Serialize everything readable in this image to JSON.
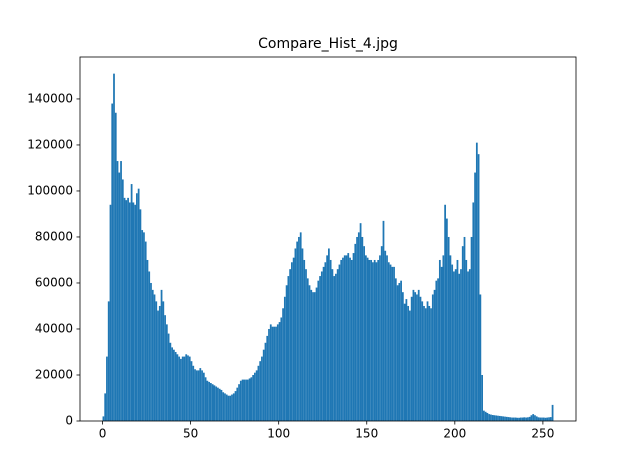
{
  "chart_data": {
    "type": "histogram",
    "title": "Compare_Hist_4.jpg",
    "color": "#1f77b4",
    "bins": [
      0,
      1,
      2,
      3,
      4,
      5,
      6,
      7,
      8,
      9,
      10,
      11,
      12,
      13,
      14,
      15,
      16,
      17,
      18,
      19,
      20,
      21,
      22,
      23,
      24,
      25,
      26,
      27,
      28,
      29,
      30,
      31,
      32,
      33,
      34,
      35,
      36,
      37,
      38,
      39,
      40,
      41,
      42,
      43,
      44,
      45,
      46,
      47,
      48,
      49,
      50,
      51,
      52,
      53,
      54,
      55,
      56,
      57,
      58,
      59,
      60,
      61,
      62,
      63,
      64,
      65,
      66,
      67,
      68,
      69,
      70,
      71,
      72,
      73,
      74,
      75,
      76,
      77,
      78,
      79,
      80,
      81,
      82,
      83,
      84,
      85,
      86,
      87,
      88,
      89,
      90,
      91,
      92,
      93,
      94,
      95,
      96,
      97,
      98,
      99,
      100,
      101,
      102,
      103,
      104,
      105,
      106,
      107,
      108,
      109,
      110,
      111,
      112,
      113,
      114,
      115,
      116,
      117,
      118,
      119,
      120,
      121,
      122,
      123,
      124,
      125,
      126,
      127,
      128,
      129,
      130,
      131,
      132,
      133,
      134,
      135,
      136,
      137,
      138,
      139,
      140,
      141,
      142,
      143,
      144,
      145,
      146,
      147,
      148,
      149,
      150,
      151,
      152,
      153,
      154,
      155,
      156,
      157,
      158,
      159,
      160,
      161,
      162,
      163,
      164,
      165,
      166,
      167,
      168,
      169,
      170,
      171,
      172,
      173,
      174,
      175,
      176,
      177,
      178,
      179,
      180,
      181,
      182,
      183,
      184,
      185,
      186,
      187,
      188,
      189,
      190,
      191,
      192,
      193,
      194,
      195,
      196,
      197,
      198,
      199,
      200,
      201,
      202,
      203,
      204,
      205,
      206,
      207,
      208,
      209,
      210,
      211,
      212,
      213,
      214,
      215,
      216,
      217,
      218,
      219,
      220,
      221,
      222,
      223,
      224,
      225,
      226,
      227,
      228,
      229,
      230,
      231,
      232,
      233,
      234,
      235,
      236,
      237,
      238,
      239,
      240,
      241,
      242,
      243,
      244,
      245,
      246,
      247,
      248,
      249,
      250,
      251,
      252,
      253,
      254,
      255,
      256
    ],
    "counts": [
      2000,
      12000,
      28000,
      52000,
      94000,
      138000,
      151000,
      134000,
      113000,
      108000,
      113000,
      105000,
      97000,
      96000,
      97000,
      95000,
      103000,
      95000,
      94000,
      99000,
      101000,
      92000,
      83000,
      82000,
      78000,
      70000,
      65000,
      60000,
      57000,
      55000,
      52000,
      48000,
      50000,
      57000,
      52000,
      46000,
      42000,
      38000,
      34000,
      32000,
      31000,
      30000,
      29000,
      28000,
      27000,
      28000,
      28000,
      29000,
      28500,
      28000,
      26000,
      24000,
      22500,
      22000,
      22000,
      23000,
      22000,
      21000,
      19000,
      17500,
      17000,
      16500,
      16000,
      15500,
      15000,
      14500,
      14000,
      13500,
      12500,
      12000,
      11500,
      11000,
      11000,
      11500,
      12000,
      13000,
      14500,
      16000,
      17500,
      18000,
      18000,
      18000,
      18000,
      18500,
      19000,
      20000,
      21000,
      22000,
      24000,
      26000,
      28000,
      31000,
      34000,
      37000,
      40000,
      42000,
      41000,
      41000,
      41000,
      42000,
      43000,
      45000,
      49000,
      54000,
      59000,
      63000,
      66000,
      69000,
      71000,
      75000,
      78000,
      80000,
      82000,
      75000,
      70000,
      66000,
      62000,
      59000,
      57000,
      56000,
      56000,
      58000,
      61000,
      63000,
      65000,
      67000,
      69000,
      72000,
      75000,
      70000,
      66000,
      63000,
      64000,
      66000,
      68000,
      70000,
      71000,
      72000,
      72000,
      73000,
      71000,
      70000,
      73000,
      77000,
      80000,
      82000,
      86000,
      80000,
      76000,
      72000,
      71000,
      70000,
      70000,
      69000,
      70000,
      69000,
      70000,
      72000,
      76000,
      87000,
      74000,
      72000,
      69000,
      68000,
      67000,
      67000,
      62000,
      59000,
      60000,
      61000,
      56000,
      51000,
      53000,
      50000,
      48000,
      54000,
      57000,
      56000,
      55000,
      57000,
      54000,
      52000,
      50000,
      49000,
      52000,
      50000,
      49000,
      55000,
      57000,
      61000,
      62000,
      70000,
      67000,
      72000,
      94000,
      88000,
      80000,
      72000,
      68000,
      65000,
      66000,
      70000,
      64000,
      66000,
      76000,
      80000,
      70000,
      65000,
      66000,
      80000,
      95000,
      108000,
      121000,
      116000,
      55000,
      20000,
      4500,
      4000,
      3500,
      3000,
      2800,
      2600,
      2500,
      2400,
      2300,
      2200,
      2100,
      2000,
      1900,
      1800,
      1700,
      1600,
      1500,
      1500,
      1500,
      1400,
      1400,
      1500,
      1500,
      1600,
      1500,
      1600,
      1800,
      2500,
      3000,
      2500,
      2000,
      1600,
      1500,
      1500,
      1500,
      1400,
      1500,
      1600,
      1700,
      7000
    ],
    "xlim": [
      -12.8,
      268.8
    ],
    "ylim": [
      0,
      158235
    ],
    "xticks": [
      0,
      50,
      100,
      150,
      200,
      250
    ],
    "yticks": [
      0,
      20000,
      40000,
      60000,
      80000,
      100000,
      120000,
      140000
    ]
  }
}
